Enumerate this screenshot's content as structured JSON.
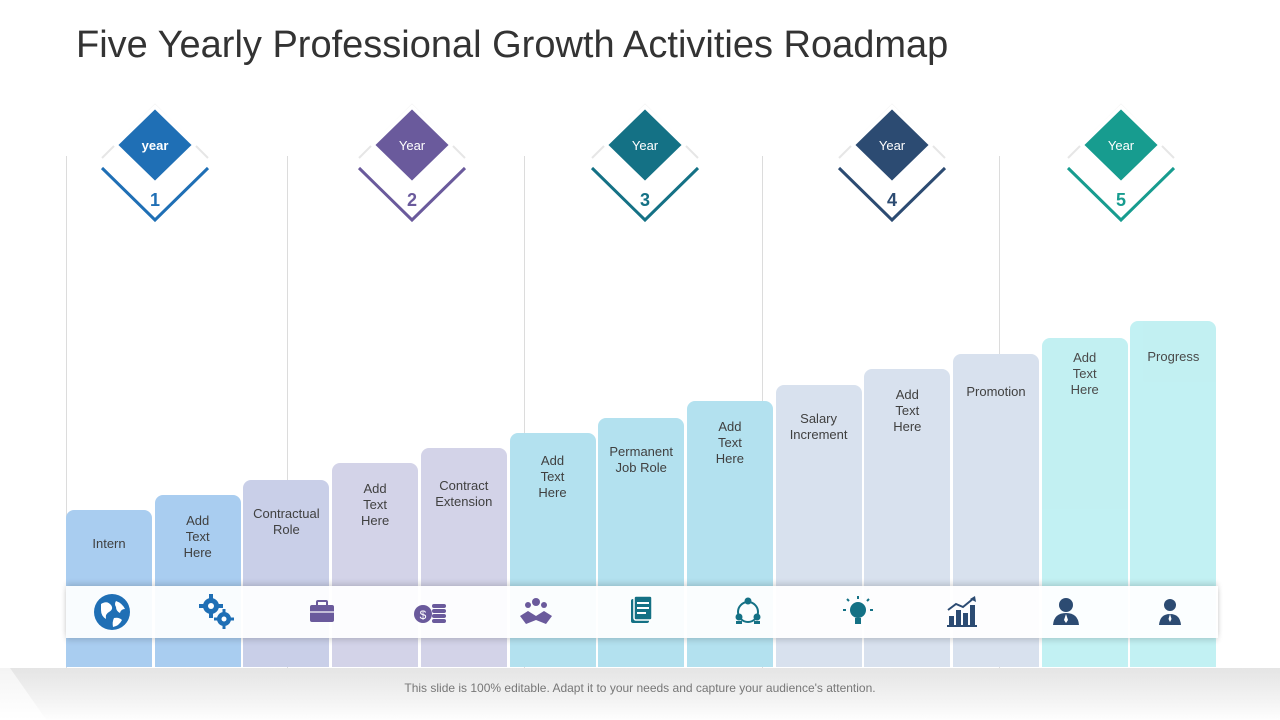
{
  "title": "Five Yearly Professional Growth Activities Roadmap",
  "years": [
    {
      "label": "year",
      "number": "1",
      "color": "#1f6fb5"
    },
    {
      "label": "Year",
      "number": "2",
      "color": "#6a5a9c"
    },
    {
      "label": "Year",
      "number": "3",
      "color": "#147185"
    },
    {
      "label": "Year",
      "number": "4",
      "color": "#2c4b72"
    },
    {
      "label": "Year",
      "number": "5",
      "color": "#179c8f"
    }
  ],
  "steps": [
    {
      "label": "Intern",
      "icon": "globe-icon",
      "fill": "#a9cdf0",
      "iconColor": "#1f6fb5"
    },
    {
      "label": "Add\nText\nHere",
      "icon": "gears-icon",
      "fill": "#a9cdf0",
      "iconColor": "#1f6fb5"
    },
    {
      "label": "Contractual\nRole",
      "icon": "briefcase-icon",
      "fill": "#c9cfe8",
      "iconColor": "#6a5a9c"
    },
    {
      "label": "Add\nText\nHere",
      "icon": "coins-icon",
      "fill": "#d3d3e8",
      "iconColor": "#6a5a9c"
    },
    {
      "label": "Contract\nExtension",
      "icon": "handshake-icon",
      "fill": "#d3d3e8",
      "iconColor": "#6a5a9c"
    },
    {
      "label": "Add\nText\nHere",
      "icon": "document-icon",
      "fill": "#b3e1ef",
      "iconColor": "#147185"
    },
    {
      "label": "Permanent\nJob Role",
      "icon": "team-icon",
      "fill": "#b3e1ef",
      "iconColor": "#147185"
    },
    {
      "label": "Add\nText\nHere",
      "icon": "lightbulb-icon",
      "fill": "#b3e1ef",
      "iconColor": "#147185"
    },
    {
      "label": "Salary\nIncrement",
      "icon": "growth-chart-icon",
      "fill": "#d8e1ee",
      "iconColor": "#2c4b72"
    },
    {
      "label": "Add\nText\nHere",
      "icon": "person-icon",
      "fill": "#d8e1ee",
      "iconColor": "#2c4b72"
    },
    {
      "label": "Promotion",
      "icon": "user-icon",
      "fill": "#d8e1ee",
      "iconColor": "#2c4b72"
    },
    {
      "label": "Add\nText\nHere",
      "icon": "",
      "fill": "#bff0f2",
      "iconColor": "#179c8f"
    },
    {
      "label": "Progress",
      "icon": "",
      "fill": "#bff0f2",
      "iconColor": "#179c8f"
    }
  ],
  "footer": "This slide is 100% editable. Adapt it to your needs and capture your audience's attention."
}
